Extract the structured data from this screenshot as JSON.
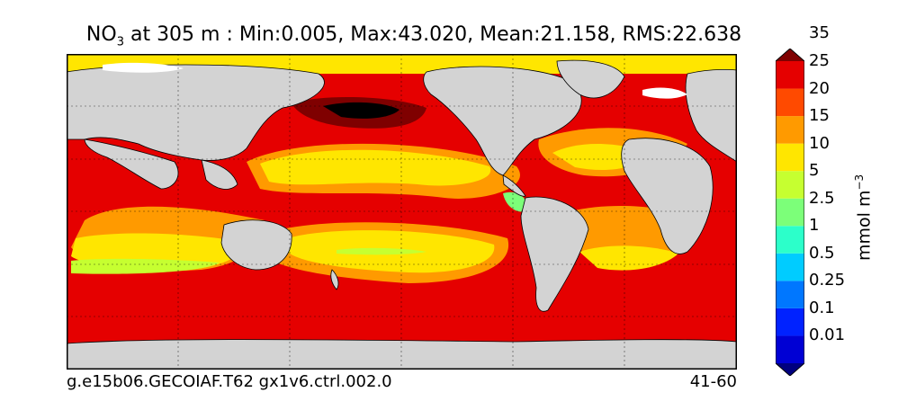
{
  "title": {
    "species_main": "NO",
    "species_sub": "3",
    "rest": " at 305 m : Min:0.005, Max:43.020, Mean:21.158, RMS:22.638"
  },
  "caption": {
    "left": "g.e15b06.GECOIAF.T62 gx1v6.ctrl.002.0",
    "right": "41-60"
  },
  "colorbar": {
    "unit_main": "mmol m",
    "unit_sup": "−3",
    "levels": [
      "0.01",
      "0.1",
      "0.25",
      "0.5",
      "1",
      "2.5",
      "5",
      "10",
      "15",
      "20",
      "25",
      "35"
    ],
    "colors": [
      "#00007f",
      "#0000d4",
      "#0022ff",
      "#0077ff",
      "#00ccff",
      "#2cffca",
      "#7cff79",
      "#c6ff30",
      "#ffe600",
      "#ff9a00",
      "#ff4a00",
      "#e50000",
      "#7f0000"
    ]
  },
  "map_colors": {
    "land": "#d3d3d3",
    "red": "#e50000",
    "orange": "#ff9a00",
    "yellow": "#ffe600",
    "lime": "#c6ff30",
    "green": "#7cff79",
    "dark_red": "#7f0000",
    "black": "#000000",
    "white": "#ffffff"
  }
}
